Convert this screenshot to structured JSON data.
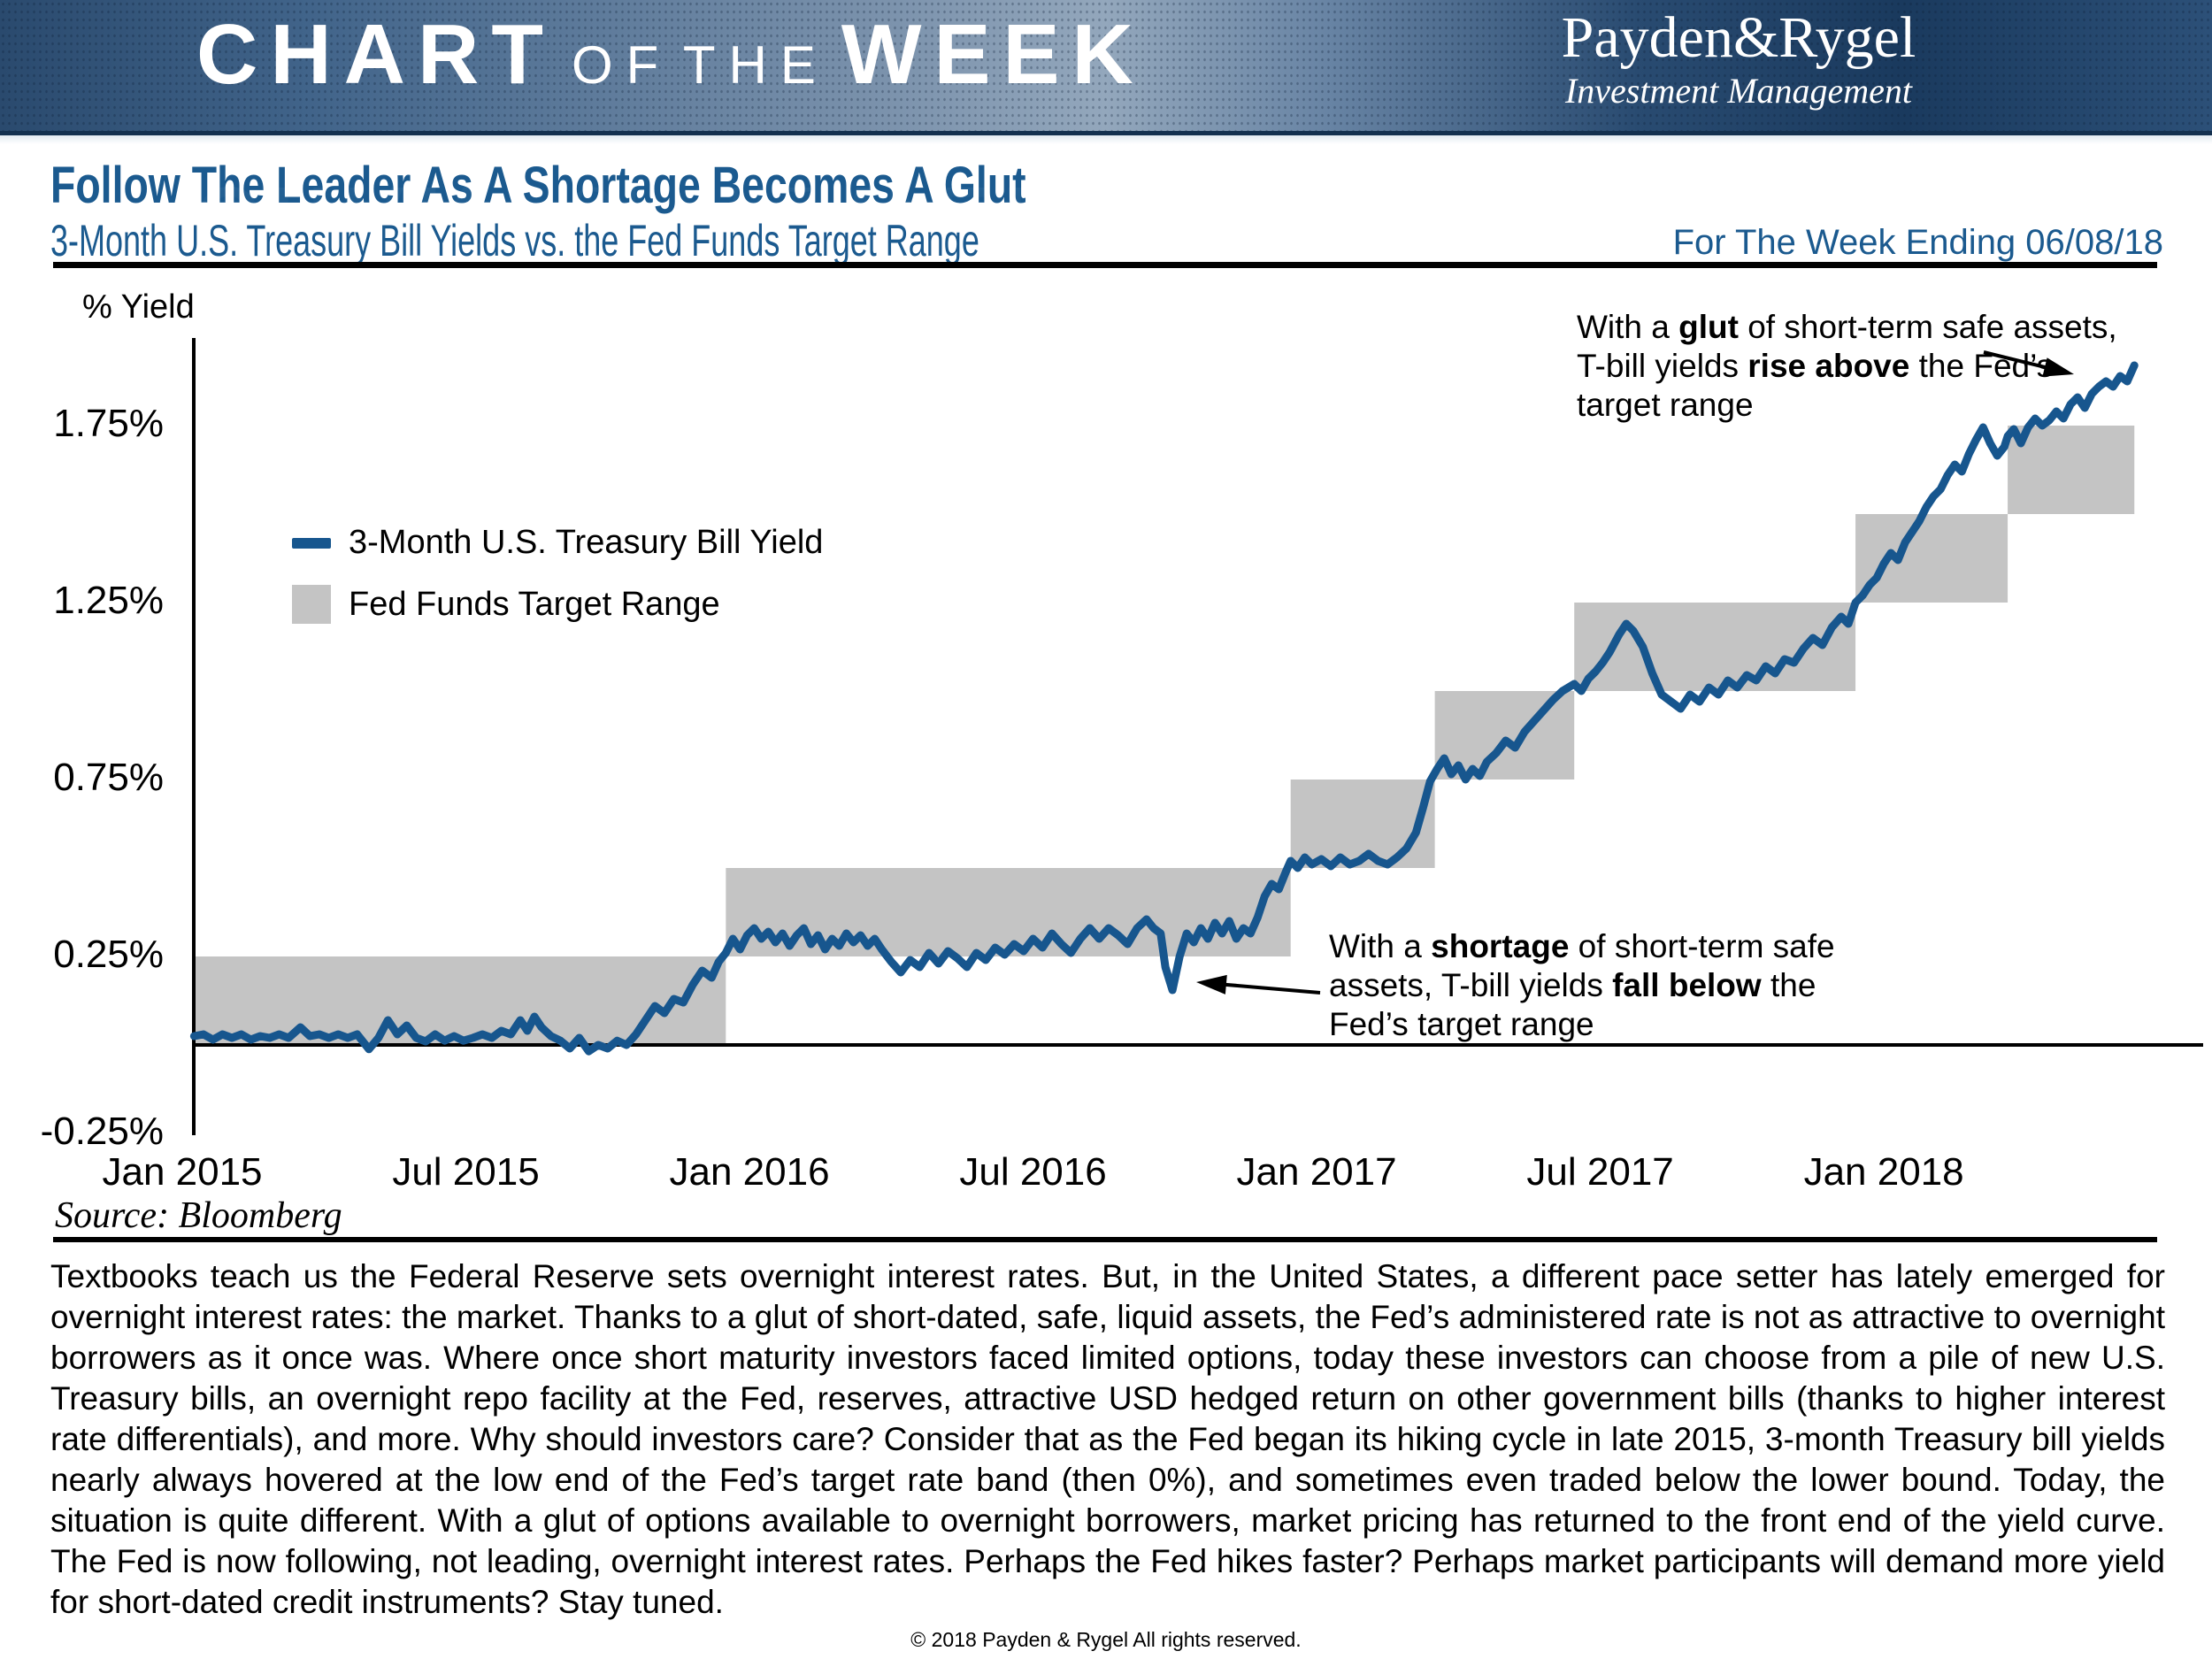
{
  "banner": {
    "brand_word1": "CHART",
    "brand_word2": "OF THE",
    "brand_word3": "WEEK",
    "logo_name": "Payden&Rygel",
    "logo_tagline": "Investment Management"
  },
  "header": {
    "title": "Follow The Leader As A Shortage Becomes A Glut",
    "subtitle": "3-Month U.S. Treasury Bill Yields vs. the Fed Funds Target Range",
    "week_ending": "For The Week Ending 06/08/18"
  },
  "chart": {
    "unit_label": "% Yield",
    "legend": {
      "line_label": "3-Month U.S. Treasury Bill Yield",
      "band_label": "Fed Funds Target Range"
    },
    "annotations": {
      "glut_segments": [
        [
          "With a ",
          0
        ],
        [
          "glut",
          1
        ],
        [
          " of short-term safe assets, T-bill yields ",
          0
        ],
        [
          "rise above",
          1
        ],
        [
          " the Fed’s target range",
          0
        ]
      ],
      "shortage_segments": [
        [
          "With a ",
          0
        ],
        [
          "shortage",
          1
        ],
        [
          " of short-term safe assets, T-bill yields ",
          0
        ],
        [
          "fall below",
          1
        ],
        [
          " the Fed’s target range",
          0
        ]
      ]
    },
    "source": "Source: Bloomberg",
    "colors": {
      "line_blue": "#17568e",
      "band_gray": "#c4c4c4",
      "heading_blue": "#1b5a8f",
      "axis_black": "#000000"
    }
  },
  "chart_data": {
    "type": "line",
    "title": "3-Month U.S. Treasury Bill Yields vs. the Fed Funds Target Range",
    "ylabel": "% Yield",
    "ylim": [
      -0.25,
      2.0
    ],
    "x_unit": "months since Jan 2015",
    "grid": false,
    "legend_position": "upper-left-inside",
    "y_ticks": [
      {
        "label": "1.75%",
        "value": 1.75
      },
      {
        "label": "1.25%",
        "value": 1.25
      },
      {
        "label": "0.75%",
        "value": 0.75
      },
      {
        "label": "0.25%",
        "value": 0.25
      },
      {
        "label": "-0.25%",
        "value": -0.25
      }
    ],
    "x_ticks": [
      {
        "label": "Jan 2015",
        "month": 0
      },
      {
        "label": "Jul 2015",
        "month": 6
      },
      {
        "label": "Jan 2016",
        "month": 12
      },
      {
        "label": "Jul 2016",
        "month": 18
      },
      {
        "label": "Jan 2017",
        "month": 24
      },
      {
        "label": "Jul 2017",
        "month": 30
      },
      {
        "label": "Jan 2018",
        "month": 36
      }
    ],
    "series": [
      {
        "name": "Fed Funds Target Range",
        "type": "band",
        "color": "#c4c4c4",
        "steps": [
          {
            "range_pct": "0.00-0.25",
            "from_month": 0.25,
            "to_month": 11.5,
            "low": 0.0,
            "high": 0.25
          },
          {
            "range_pct": "0.25-0.50",
            "from_month": 11.5,
            "to_month": 23.45,
            "low": 0.25,
            "high": 0.5
          },
          {
            "range_pct": "0.50-0.75",
            "from_month": 23.45,
            "to_month": 26.5,
            "low": 0.5,
            "high": 0.75
          },
          {
            "range_pct": "0.75-1.00",
            "from_month": 26.5,
            "to_month": 29.45,
            "low": 0.75,
            "high": 1.0
          },
          {
            "range_pct": "1.00-1.25",
            "from_month": 29.45,
            "to_month": 35.4,
            "low": 1.0,
            "high": 1.25
          },
          {
            "range_pct": "1.25-1.50",
            "from_month": 35.4,
            "to_month": 38.62,
            "low": 1.25,
            "high": 1.5
          },
          {
            "range_pct": "1.50-1.75",
            "from_month": 38.62,
            "to_month": 41.3,
            "low": 1.5,
            "high": 1.75
          }
        ]
      },
      {
        "name": "3-Month U.S. Treasury Bill Yield",
        "type": "line",
        "color": "#17568e",
        "points": [
          [
            0.25,
            0.025
          ],
          [
            0.45,
            0.03
          ],
          [
            0.65,
            0.015
          ],
          [
            0.85,
            0.03
          ],
          [
            1.05,
            0.02
          ],
          [
            1.25,
            0.03
          ],
          [
            1.45,
            0.015
          ],
          [
            1.65,
            0.025
          ],
          [
            1.85,
            0.02
          ],
          [
            2.05,
            0.03
          ],
          [
            2.25,
            0.02
          ],
          [
            2.5,
            0.05
          ],
          [
            2.7,
            0.025
          ],
          [
            2.9,
            0.03
          ],
          [
            3.1,
            0.02
          ],
          [
            3.3,
            0.03
          ],
          [
            3.5,
            0.02
          ],
          [
            3.7,
            0.03
          ],
          [
            3.95,
            -0.012
          ],
          [
            4.15,
            0.02
          ],
          [
            4.35,
            0.07
          ],
          [
            4.55,
            0.03
          ],
          [
            4.75,
            0.055
          ],
          [
            4.95,
            0.02
          ],
          [
            5.15,
            0.01
          ],
          [
            5.35,
            0.03
          ],
          [
            5.55,
            0.012
          ],
          [
            5.75,
            0.025
          ],
          [
            5.95,
            0.012
          ],
          [
            6.15,
            0.02
          ],
          [
            6.35,
            0.03
          ],
          [
            6.55,
            0.02
          ],
          [
            6.75,
            0.04
          ],
          [
            6.95,
            0.03
          ],
          [
            7.15,
            0.07
          ],
          [
            7.3,
            0.04
          ],
          [
            7.45,
            0.08
          ],
          [
            7.6,
            0.05
          ],
          [
            7.8,
            0.025
          ],
          [
            8.0,
            0.012
          ],
          [
            8.2,
            -0.01
          ],
          [
            8.4,
            0.02
          ],
          [
            8.6,
            -0.018
          ],
          [
            8.8,
            0.0
          ],
          [
            9.0,
            -0.01
          ],
          [
            9.2,
            0.012
          ],
          [
            9.4,
            0.0
          ],
          [
            9.6,
            0.03
          ],
          [
            9.8,
            0.07
          ],
          [
            10.0,
            0.11
          ],
          [
            10.2,
            0.09
          ],
          [
            10.4,
            0.13
          ],
          [
            10.6,
            0.12
          ],
          [
            10.8,
            0.17
          ],
          [
            11.0,
            0.21
          ],
          [
            11.2,
            0.19
          ],
          [
            11.35,
            0.235
          ],
          [
            11.5,
            0.26
          ],
          [
            11.65,
            0.3
          ],
          [
            11.8,
            0.27
          ],
          [
            11.95,
            0.31
          ],
          [
            12.1,
            0.33
          ],
          [
            12.25,
            0.3
          ],
          [
            12.4,
            0.32
          ],
          [
            12.55,
            0.29
          ],
          [
            12.7,
            0.315
          ],
          [
            12.85,
            0.28
          ],
          [
            13.0,
            0.31
          ],
          [
            13.15,
            0.33
          ],
          [
            13.3,
            0.285
          ],
          [
            13.45,
            0.31
          ],
          [
            13.6,
            0.27
          ],
          [
            13.75,
            0.3
          ],
          [
            13.9,
            0.28
          ],
          [
            14.05,
            0.315
          ],
          [
            14.2,
            0.29
          ],
          [
            14.35,
            0.31
          ],
          [
            14.5,
            0.28
          ],
          [
            14.65,
            0.3
          ],
          [
            14.8,
            0.27
          ],
          [
            15.0,
            0.235
          ],
          [
            15.2,
            0.205
          ],
          [
            15.4,
            0.24
          ],
          [
            15.6,
            0.22
          ],
          [
            15.8,
            0.26
          ],
          [
            16.0,
            0.23
          ],
          [
            16.2,
            0.265
          ],
          [
            16.4,
            0.245
          ],
          [
            16.6,
            0.22
          ],
          [
            16.8,
            0.26
          ],
          [
            17.0,
            0.24
          ],
          [
            17.2,
            0.275
          ],
          [
            17.4,
            0.255
          ],
          [
            17.6,
            0.285
          ],
          [
            17.8,
            0.265
          ],
          [
            18.0,
            0.3
          ],
          [
            18.2,
            0.275
          ],
          [
            18.4,
            0.315
          ],
          [
            18.6,
            0.285
          ],
          [
            18.8,
            0.26
          ],
          [
            19.0,
            0.3
          ],
          [
            19.2,
            0.33
          ],
          [
            19.4,
            0.3
          ],
          [
            19.6,
            0.33
          ],
          [
            19.8,
            0.31
          ],
          [
            20.0,
            0.285
          ],
          [
            20.2,
            0.33
          ],
          [
            20.4,
            0.355
          ],
          [
            20.55,
            0.33
          ],
          [
            20.7,
            0.315
          ],
          [
            20.8,
            0.22
          ],
          [
            20.95,
            0.155
          ],
          [
            21.1,
            0.25
          ],
          [
            21.25,
            0.315
          ],
          [
            21.4,
            0.29
          ],
          [
            21.55,
            0.33
          ],
          [
            21.7,
            0.3
          ],
          [
            21.85,
            0.345
          ],
          [
            22.0,
            0.315
          ],
          [
            22.15,
            0.35
          ],
          [
            22.3,
            0.3
          ],
          [
            22.45,
            0.33
          ],
          [
            22.6,
            0.315
          ],
          [
            22.75,
            0.36
          ],
          [
            22.9,
            0.42
          ],
          [
            23.05,
            0.455
          ],
          [
            23.2,
            0.44
          ],
          [
            23.35,
            0.49
          ],
          [
            23.45,
            0.52
          ],
          [
            23.6,
            0.5
          ],
          [
            23.75,
            0.53
          ],
          [
            23.9,
            0.51
          ],
          [
            24.1,
            0.525
          ],
          [
            24.3,
            0.505
          ],
          [
            24.5,
            0.53
          ],
          [
            24.7,
            0.51
          ],
          [
            24.9,
            0.52
          ],
          [
            25.1,
            0.54
          ],
          [
            25.3,
            0.52
          ],
          [
            25.5,
            0.51
          ],
          [
            25.7,
            0.53
          ],
          [
            25.9,
            0.555
          ],
          [
            26.1,
            0.6
          ],
          [
            26.25,
            0.67
          ],
          [
            26.4,
            0.745
          ],
          [
            26.55,
            0.78
          ],
          [
            26.7,
            0.81
          ],
          [
            26.85,
            0.765
          ],
          [
            27.0,
            0.79
          ],
          [
            27.15,
            0.75
          ],
          [
            27.3,
            0.78
          ],
          [
            27.45,
            0.76
          ],
          [
            27.6,
            0.8
          ],
          [
            27.8,
            0.825
          ],
          [
            28.0,
            0.86
          ],
          [
            28.2,
            0.84
          ],
          [
            28.4,
            0.885
          ],
          [
            28.6,
            0.915
          ],
          [
            28.8,
            0.945
          ],
          [
            29.0,
            0.975
          ],
          [
            29.2,
            1.0
          ],
          [
            29.45,
            1.02
          ],
          [
            29.6,
            1.0
          ],
          [
            29.75,
            1.035
          ],
          [
            29.9,
            1.055
          ],
          [
            30.05,
            1.08
          ],
          [
            30.2,
            1.11
          ],
          [
            30.4,
            1.16
          ],
          [
            30.55,
            1.19
          ],
          [
            30.7,
            1.17
          ],
          [
            30.9,
            1.125
          ],
          [
            31.1,
            1.05
          ],
          [
            31.3,
            0.99
          ],
          [
            31.5,
            0.97
          ],
          [
            31.7,
            0.95
          ],
          [
            31.9,
            0.99
          ],
          [
            32.1,
            0.97
          ],
          [
            32.3,
            1.01
          ],
          [
            32.5,
            0.99
          ],
          [
            32.7,
            1.03
          ],
          [
            32.9,
            1.01
          ],
          [
            33.1,
            1.045
          ],
          [
            33.3,
            1.03
          ],
          [
            33.5,
            1.07
          ],
          [
            33.7,
            1.05
          ],
          [
            33.9,
            1.09
          ],
          [
            34.1,
            1.08
          ],
          [
            34.3,
            1.12
          ],
          [
            34.5,
            1.15
          ],
          [
            34.7,
            1.13
          ],
          [
            34.9,
            1.18
          ],
          [
            35.1,
            1.21
          ],
          [
            35.25,
            1.19
          ],
          [
            35.4,
            1.25
          ],
          [
            35.55,
            1.27
          ],
          [
            35.7,
            1.3
          ],
          [
            35.85,
            1.32
          ],
          [
            36.0,
            1.36
          ],
          [
            36.15,
            1.39
          ],
          [
            36.3,
            1.37
          ],
          [
            36.45,
            1.42
          ],
          [
            36.6,
            1.45
          ],
          [
            36.75,
            1.48
          ],
          [
            36.9,
            1.52
          ],
          [
            37.05,
            1.55
          ],
          [
            37.2,
            1.57
          ],
          [
            37.35,
            1.61
          ],
          [
            37.5,
            1.64
          ],
          [
            37.65,
            1.62
          ],
          [
            37.8,
            1.67
          ],
          [
            37.95,
            1.71
          ],
          [
            38.1,
            1.745
          ],
          [
            38.25,
            1.7
          ],
          [
            38.4,
            1.665
          ],
          [
            38.55,
            1.69
          ],
          [
            38.62,
            1.72
          ],
          [
            38.75,
            1.74
          ],
          [
            38.9,
            1.7
          ],
          [
            39.05,
            1.745
          ],
          [
            39.2,
            1.77
          ],
          [
            39.35,
            1.75
          ],
          [
            39.5,
            1.765
          ],
          [
            39.65,
            1.79
          ],
          [
            39.8,
            1.77
          ],
          [
            39.95,
            1.81
          ],
          [
            40.1,
            1.83
          ],
          [
            40.25,
            1.8
          ],
          [
            40.4,
            1.84
          ],
          [
            40.55,
            1.86
          ],
          [
            40.7,
            1.875
          ],
          [
            40.85,
            1.86
          ],
          [
            41.0,
            1.89
          ],
          [
            41.15,
            1.875
          ],
          [
            41.3,
            1.92
          ]
        ]
      }
    ]
  },
  "body_paragraph": "Textbooks teach us the Federal Reserve sets overnight interest rates. But, in the United States, a different pace setter has lately emerged for overnight interest rates: the market. Thanks to a glut of short-dated, safe, liquid assets, the Fed’s administered rate is not as attractive to overnight borrowers as it once was. Where once short maturity investors faced limited options, today these investors can choose from a pile of new U.S. Treasury bills, an overnight repo facility at the Fed, reserves, attractive USD hedged return on other government bills (thanks to higher interest rate differentials), and more. Why should investors care? Consider that as the Fed began its hiking cycle in late 2015, 3-month Treasury bill yields nearly always hovered at the low end of the Fed’s target rate band (then 0%), and sometimes even traded below the lower bound. Today, the situation is quite different. With a glut of options available to overnight borrowers, market pricing has returned to the front end of the yield curve. The Fed is now following, not leading, overnight interest rates. Perhaps the Fed hikes faster? Perhaps market participants will demand more yield for short-dated credit instruments? Stay tuned.",
  "footer": "© 2018 Payden & Rygel All rights reserved."
}
